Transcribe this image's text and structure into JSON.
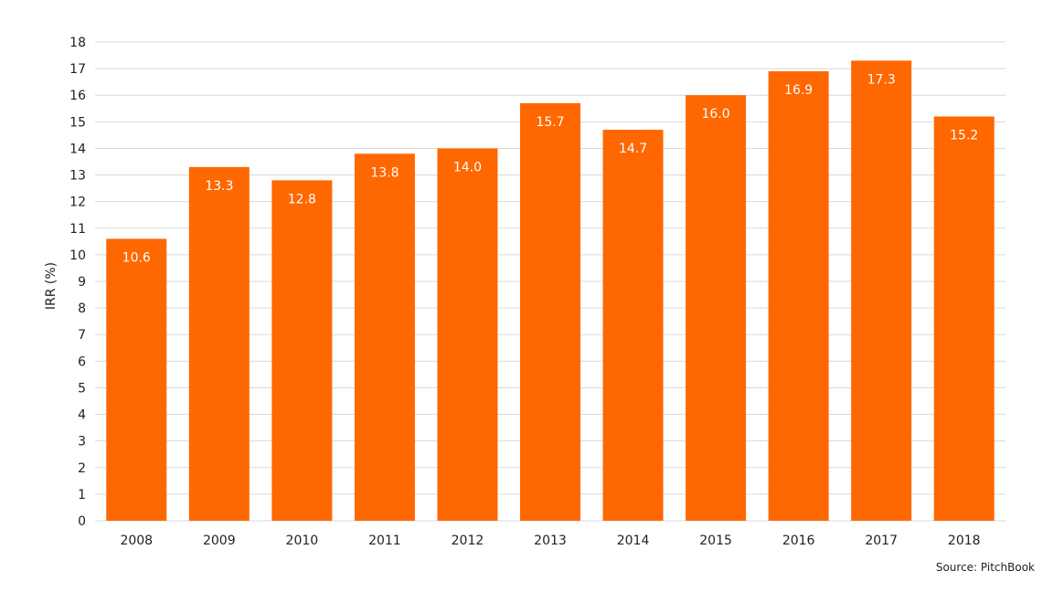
{
  "chart_data": {
    "type": "bar",
    "title": "",
    "xlabel": "",
    "ylabel": "IRR (%)",
    "ylim": [
      0,
      18
    ],
    "yticks": [
      0,
      1,
      2,
      3,
      4,
      5,
      6,
      7,
      8,
      9,
      10,
      11,
      12,
      13,
      14,
      15,
      16,
      17,
      18
    ],
    "categories": [
      "2008",
      "2009",
      "2010",
      "2011",
      "2012",
      "2013",
      "2014",
      "2015",
      "2016",
      "2017",
      "2018"
    ],
    "values": [
      10.6,
      13.3,
      12.8,
      13.8,
      14.0,
      15.7,
      14.7,
      16.0,
      16.9,
      17.3,
      15.2
    ],
    "data_labels": [
      "10.6",
      "13.3",
      "12.8",
      "13.8",
      "14.0",
      "15.7",
      "14.7",
      "16.0",
      "16.9",
      "17.3",
      "15.2"
    ],
    "grid": true,
    "bar_color": "#FF6700",
    "label_color": "#FFFFFF",
    "grid_color": "#D9D9D9"
  },
  "source": "Source: PitchBook"
}
